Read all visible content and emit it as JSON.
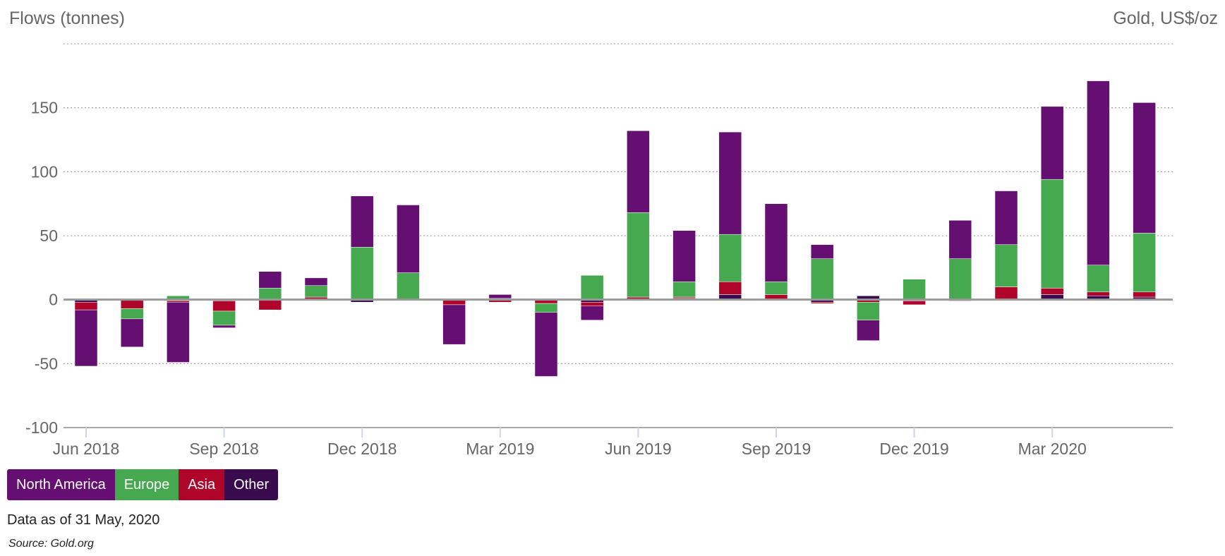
{
  "chart_data": {
    "type": "bar",
    "stacked": true,
    "title": "",
    "ylabel": "Flows (tonnes)",
    "y2label": "Gold, US$/oz",
    "xlabel": "",
    "ylim": [
      -100,
      200
    ],
    "yticks": [
      -100,
      -50,
      0,
      50,
      100,
      150,
      200
    ],
    "ytick_labels": [
      "-100",
      "-50",
      "0",
      "50",
      "100",
      "150",
      ""
    ],
    "grid": true,
    "legend_position": "bottom-left",
    "categories": [
      "Jun 2018",
      "Jul 2018",
      "Aug 2018",
      "Sep 2018",
      "Oct 2018",
      "Nov 2018",
      "Dec 2018",
      "Jan 2019",
      "Feb 2019",
      "Mar 2019",
      "Apr 2019",
      "May 2019",
      "Jun 2019",
      "Jul 2019",
      "Aug 2019",
      "Sep 2019",
      "Oct 2019",
      "Nov 2019",
      "Dec 2019",
      "Jan 2020",
      "Feb 2020",
      "Mar 2020",
      "Apr 2020",
      "May 2020"
    ],
    "xtick_labels": [
      {
        "index": 0,
        "label": "Jun 2018"
      },
      {
        "index": 3,
        "label": "Sep 2018"
      },
      {
        "index": 6,
        "label": "Dec 2018"
      },
      {
        "index": 9,
        "label": "Mar 2019"
      },
      {
        "index": 12,
        "label": "Jun 2019"
      },
      {
        "index": 15,
        "label": "Sep 2019"
      },
      {
        "index": 18,
        "label": "Dec 2019"
      },
      {
        "index": 21,
        "label": "Mar 2020"
      }
    ],
    "series": [
      {
        "name": "Other",
        "color": "#3a0a4f",
        "values": [
          -2,
          0,
          -1,
          -1,
          0,
          0,
          -2,
          0,
          0,
          0,
          0,
          -2,
          0,
          1,
          4,
          0,
          -2,
          3,
          -1,
          0,
          0,
          4,
          3,
          2
        ]
      },
      {
        "name": "Asia",
        "color": "#b0052a",
        "values": [
          -6,
          -7,
          -1,
          -8,
          -8,
          2,
          0,
          0,
          -4,
          -2,
          -3,
          -3,
          2,
          1,
          10,
          4,
          -1,
          -2,
          -3,
          -1,
          10,
          5,
          3,
          4
        ]
      },
      {
        "name": "Europe",
        "color": "#46a84f",
        "values": [
          0,
          -8,
          3,
          -11,
          9,
          9,
          41,
          21,
          0,
          1,
          -7,
          19,
          66,
          12,
          37,
          10,
          32,
          -14,
          16,
          32,
          33,
          85,
          21,
          46
        ]
      },
      {
        "name": "North America",
        "color": "#660f72",
        "values": [
          -44,
          -22,
          -47,
          -2,
          13,
          6,
          40,
          53,
          -31,
          3,
          -50,
          -11,
          64,
          40,
          80,
          61,
          11,
          -16,
          0,
          30,
          42,
          57,
          144,
          102
        ]
      }
    ]
  },
  "legend": [
    {
      "label": "North America",
      "color": "#660f72"
    },
    {
      "label": "Europe",
      "color": "#46a84f"
    },
    {
      "label": "Asia",
      "color": "#b0052a"
    },
    {
      "label": "Other",
      "color": "#3a0a4f"
    }
  ],
  "footnote": "Data as of 31 May, 2020",
  "source": "Source: Gold.org"
}
